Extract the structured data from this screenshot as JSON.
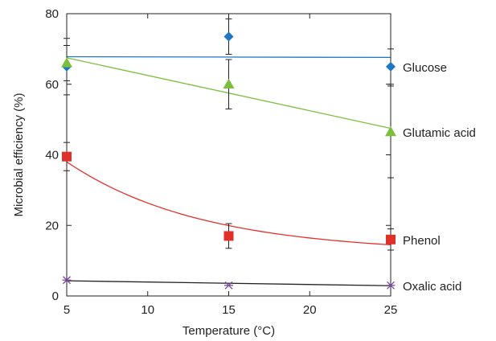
{
  "chart_data": {
    "type": "scatter",
    "xlabel": "Temperature (°C)",
    "ylabel": "Microbial efficiency (%)",
    "xlim": [
      5,
      25
    ],
    "ylim": [
      0,
      80
    ],
    "x_ticks": [
      5,
      10,
      15,
      20,
      25
    ],
    "y_ticks": [
      0,
      20,
      40,
      60,
      80
    ],
    "grid": false,
    "legend": "inline labels at right",
    "series": [
      {
        "name": "Glucose",
        "color": "#1f77c4",
        "marker": "diamond",
        "x": [
          5,
          15,
          25
        ],
        "y": [
          65,
          73.5,
          65
        ],
        "err": [
          8,
          5,
          5
        ],
        "fit": {
          "kind": "linear",
          "y_start": 67.8,
          "y_end": 67.6
        }
      },
      {
        "name": "Glutamic acid",
        "color": "#7cbf3c",
        "marker": "triangle",
        "x": [
          5,
          15,
          25
        ],
        "y": [
          66,
          60,
          46.5
        ],
        "err": [
          5,
          7,
          13
        ],
        "fit": {
          "kind": "linear",
          "y_start": 67.5,
          "y_end": 47.5
        }
      },
      {
        "name": "Phenol",
        "color": "#e0302a",
        "marker": "square",
        "x": [
          5,
          15,
          25
        ],
        "y": [
          39.5,
          17,
          16
        ],
        "err": [
          4,
          3.5,
          3
        ],
        "fit": {
          "kind": "curve",
          "y_start": 38,
          "y_end": 14.5
        }
      },
      {
        "name": "Oxalic acid",
        "color": "#222222",
        "marker": "cross",
        "x": [
          5,
          15,
          25
        ],
        "y": [
          4.5,
          3,
          3
        ],
        "err": [
          0,
          0,
          0
        ],
        "fit": {
          "kind": "linear",
          "y_start": 4.3,
          "y_end": 2.9
        }
      }
    ]
  }
}
